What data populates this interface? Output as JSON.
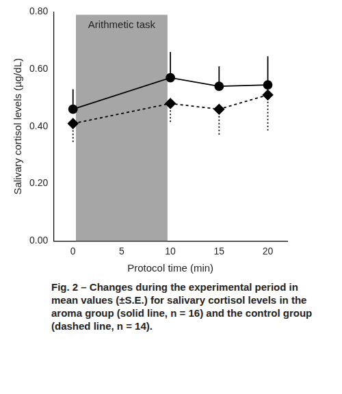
{
  "chart_data": {
    "type": "line",
    "x_label": "Protocol time (min)",
    "y_label": "Salivary cortisol levels (µg/dL)",
    "caption": "Fig. 2 – Changes during the experimental period in mean values (±S.E.) for salivary cortisol levels in the aroma group (solid line, n = 16) and the control group (dashed line, n = 14).",
    "x": [
      0,
      10,
      15,
      20
    ],
    "series": [
      {
        "name": "aroma group",
        "color": "#000000",
        "marker": "circle",
        "line_style": "solid",
        "values": [
          0.46,
          0.57,
          0.54,
          0.545
        ],
        "error_upper": [
          0.07,
          0.09,
          0.07,
          0.1
        ]
      },
      {
        "name": "control group",
        "color": "#000000",
        "marker": "diamond",
        "line_style": "dashed",
        "values": [
          0.41,
          0.48,
          0.46,
          0.51
        ],
        "error_lower": [
          0.07,
          0.07,
          0.09,
          0.13
        ]
      }
    ],
    "annotations": [
      {
        "text": "Arithmetic task",
        "x_range": [
          0.3,
          9.7
        ],
        "y_range": [
          0,
          0.79
        ],
        "color": "#a6a6a6"
      }
    ],
    "xlim": [
      -2,
      22
    ],
    "xticks": [
      0,
      5,
      10,
      15,
      20
    ],
    "ylim": [
      0,
      0.8
    ],
    "yticks": [
      {
        "value": 0,
        "label": "0.00"
      },
      {
        "value": 0.2,
        "label": "0.20"
      },
      {
        "value": 0.4,
        "label": "0.40"
      },
      {
        "value": 0.6,
        "label": "0.60"
      },
      {
        "value": 0.8,
        "label": "0.80"
      }
    ],
    "grid": false
  }
}
